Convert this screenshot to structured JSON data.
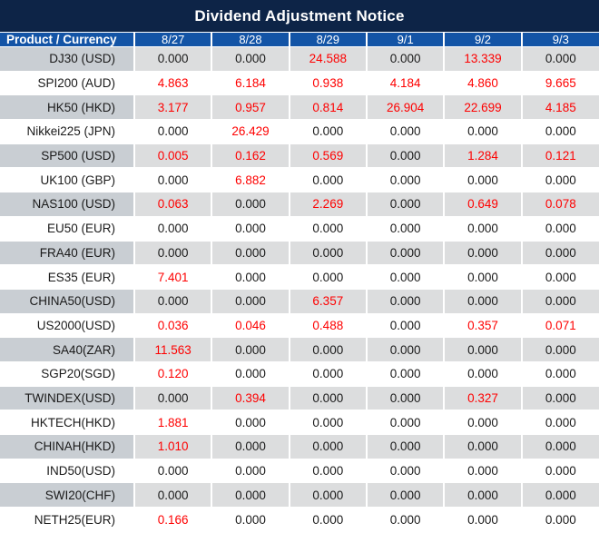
{
  "title": "Dividend Adjustment Notice",
  "header": {
    "product": "Product / Currency",
    "dates": [
      "8/27",
      "8/28",
      "8/29",
      "9/1",
      "9/2",
      "9/3"
    ]
  },
  "rows": [
    {
      "product": "DJ30 (USD)",
      "values": [
        "0.000",
        "0.000",
        "24.588",
        "0.000",
        "13.339",
        "0.000"
      ]
    },
    {
      "product": "SPI200 (AUD)",
      "values": [
        "4.863",
        "6.184",
        "0.938",
        "4.184",
        "4.860",
        "9.665"
      ]
    },
    {
      "product": "HK50 (HKD)",
      "values": [
        "3.177",
        "0.957",
        "0.814",
        "26.904",
        "22.699",
        "4.185"
      ]
    },
    {
      "product": "Nikkei225 (JPN)",
      "values": [
        "0.000",
        "26.429",
        "0.000",
        "0.000",
        "0.000",
        "0.000"
      ]
    },
    {
      "product": "SP500 (USD)",
      "values": [
        "0.005",
        "0.162",
        "0.569",
        "0.000",
        "1.284",
        "0.121"
      ]
    },
    {
      "product": "UK100 (GBP)",
      "values": [
        "0.000",
        "6.882",
        "0.000",
        "0.000",
        "0.000",
        "0.000"
      ]
    },
    {
      "product": "NAS100 (USD)",
      "values": [
        "0.063",
        "0.000",
        "2.269",
        "0.000",
        "0.649",
        "0.078"
      ]
    },
    {
      "product": "EU50 (EUR)",
      "values": [
        "0.000",
        "0.000",
        "0.000",
        "0.000",
        "0.000",
        "0.000"
      ]
    },
    {
      "product": "FRA40 (EUR)",
      "values": [
        "0.000",
        "0.000",
        "0.000",
        "0.000",
        "0.000",
        "0.000"
      ]
    },
    {
      "product": "ES35 (EUR)",
      "values": [
        "7.401",
        "0.000",
        "0.000",
        "0.000",
        "0.000",
        "0.000"
      ]
    },
    {
      "product": "CHINA50(USD)",
      "values": [
        "0.000",
        "0.000",
        "6.357",
        "0.000",
        "0.000",
        "0.000"
      ]
    },
    {
      "product": "US2000(USD)",
      "values": [
        "0.036",
        "0.046",
        "0.488",
        "0.000",
        "0.357",
        "0.071"
      ]
    },
    {
      "product": "SA40(ZAR)",
      "values": [
        "11.563",
        "0.000",
        "0.000",
        "0.000",
        "0.000",
        "0.000"
      ]
    },
    {
      "product": "SGP20(SGD)",
      "values": [
        "0.120",
        "0.000",
        "0.000",
        "0.000",
        "0.000",
        "0.000"
      ]
    },
    {
      "product": "TWINDEX(USD)",
      "values": [
        "0.000",
        "0.394",
        "0.000",
        "0.000",
        "0.327",
        "0.000"
      ]
    },
    {
      "product": "HKTECH(HKD)",
      "values": [
        "1.881",
        "0.000",
        "0.000",
        "0.000",
        "0.000",
        "0.000"
      ]
    },
    {
      "product": "CHINAH(HKD)",
      "values": [
        "1.010",
        "0.000",
        "0.000",
        "0.000",
        "0.000",
        "0.000"
      ]
    },
    {
      "product": "IND50(USD)",
      "values": [
        "0.000",
        "0.000",
        "0.000",
        "0.000",
        "0.000",
        "0.000"
      ]
    },
    {
      "product": "SWI20(CHF)",
      "values": [
        "0.000",
        "0.000",
        "0.000",
        "0.000",
        "0.000",
        "0.000"
      ]
    },
    {
      "product": "NETH25(EUR)",
      "values": [
        "0.166",
        "0.000",
        "0.000",
        "0.000",
        "0.000",
        "0.000"
      ]
    }
  ],
  "colors": {
    "title_bg": "#0d2447",
    "header_bg": "#1354a6",
    "alt_label_bg": "#c9ced3",
    "alt_value_bg": "#dcddde",
    "zero_text": "#1a1a1a",
    "nonzero_text": "#fe0000",
    "gridline": "#ffffff"
  }
}
